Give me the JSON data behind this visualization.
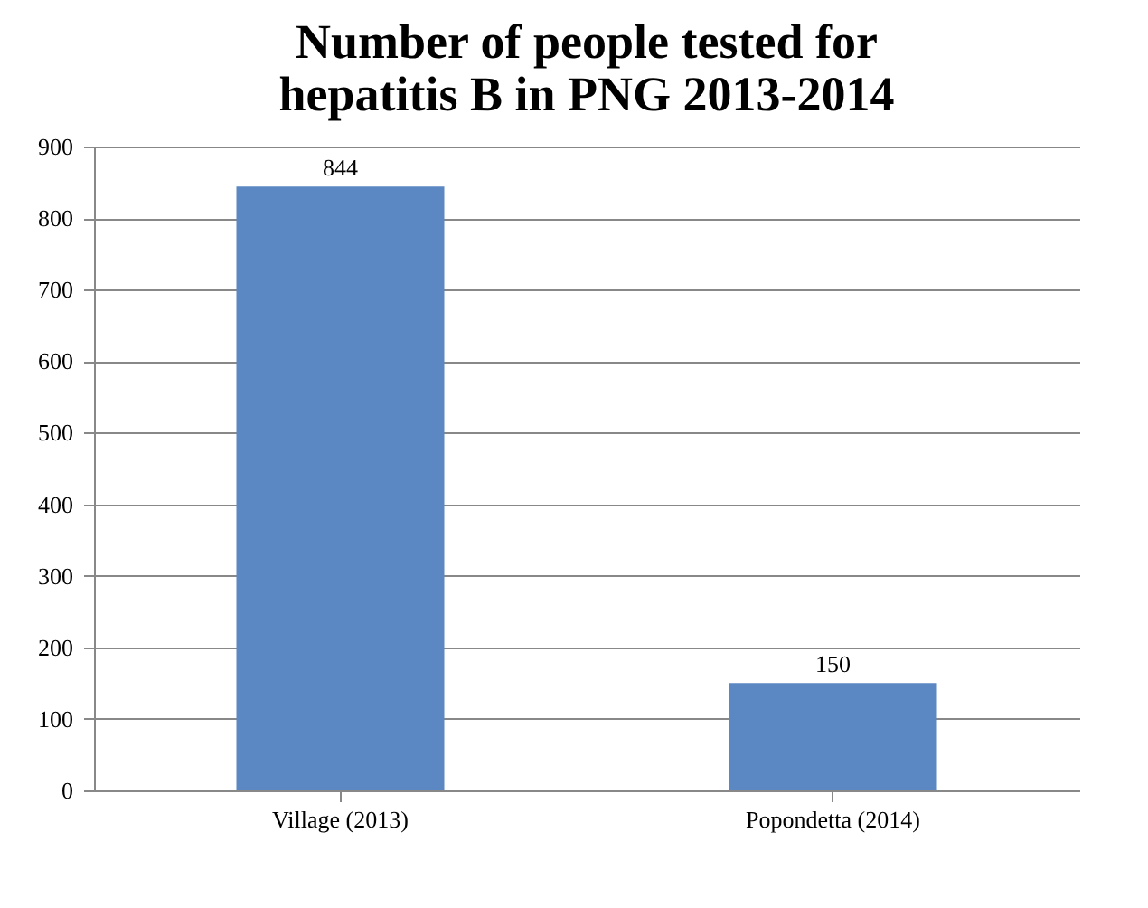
{
  "chart_data": {
    "type": "bar",
    "title": "Number of people tested for\nhepatitis B in PNG 2013-2014",
    "categories": [
      "Village (2013)",
      "Popondetta (2014)"
    ],
    "values": [
      844,
      150
    ],
    "color": "#5b87c2",
    "ylim": [
      0,
      900
    ],
    "yticks": [
      0,
      100,
      200,
      300,
      400,
      500,
      600,
      700,
      800,
      900
    ],
    "grid": "y",
    "data_labels": true
  }
}
